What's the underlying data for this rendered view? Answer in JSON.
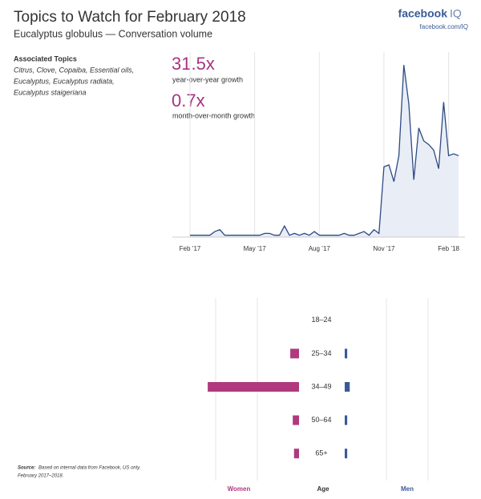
{
  "header": {
    "title": "Topics to Watch for February 2018",
    "subtitle": "Eucalyptus globulus — Conversation volume"
  },
  "brand": {
    "name": "facebook",
    "suffix": "IQ",
    "url": "facebook.com/IQ"
  },
  "associated_topics": {
    "heading": "Associated Topics",
    "lines": [
      "Citrus, Clove, Copaiba, Essential oils,",
      "Eucalyptus, Eucalyptus radiata,",
      "Eucalyptus staigeriana"
    ]
  },
  "stats": [
    {
      "value": "31.5x",
      "label": "year-over-year growth"
    },
    {
      "value": "0.7x",
      "label": "month-over-month growth"
    }
  ],
  "source": {
    "label": "Source:",
    "lines": [
      "Based on internal data from Facebook, US only.",
      "February 2017–2018."
    ]
  },
  "chart_data": [
    {
      "type": "area",
      "color": "#2d4a84",
      "fill": "#e9edf6",
      "categories": [
        "Feb ’17",
        null,
        null,
        null,
        null,
        null,
        null,
        null,
        null,
        null,
        null,
        null,
        null,
        "May ’17",
        null,
        null,
        null,
        null,
        null,
        null,
        null,
        null,
        null,
        null,
        null,
        null,
        "Aug ’17",
        null,
        null,
        null,
        null,
        null,
        null,
        null,
        null,
        null,
        null,
        null,
        null,
        "Nov ’17",
        null,
        null,
        null,
        null,
        null,
        null,
        null,
        null,
        null,
        null,
        null,
        null,
        "Feb ’18",
        null,
        null
      ],
      "values": [
        1,
        1,
        1,
        1,
        1,
        3,
        4,
        1,
        1,
        1,
        1,
        1,
        1,
        1,
        1,
        2,
        2,
        1,
        1,
        6,
        1,
        2,
        1,
        2,
        1,
        3,
        1,
        1,
        1,
        1,
        1,
        2,
        1,
        1,
        2,
        3,
        1,
        4,
        2,
        38,
        39,
        30,
        44,
        93,
        72,
        31,
        59,
        52,
        50,
        47,
        37,
        73,
        44,
        45,
        44
      ],
      "ylim": [
        0,
        100
      ],
      "grid": true
    },
    {
      "type": "diverging-bar",
      "category_label": "Age",
      "categories": [
        "18–24",
        "25–34",
        "34–49",
        "50–64",
        "65+"
      ],
      "series": [
        {
          "name": "Women",
          "color": "#b0397e",
          "values": [
            0,
            0.21,
            2.19,
            0.15,
            0.12
          ]
        },
        {
          "name": "Men",
          "color": "#3b5998",
          "values": [
            0,
            0.06,
            0.12,
            0.06,
            0.06
          ]
        }
      ],
      "xlim": [
        0,
        3
      ],
      "xticks": [
        1,
        2
      ],
      "grid": true
    }
  ]
}
